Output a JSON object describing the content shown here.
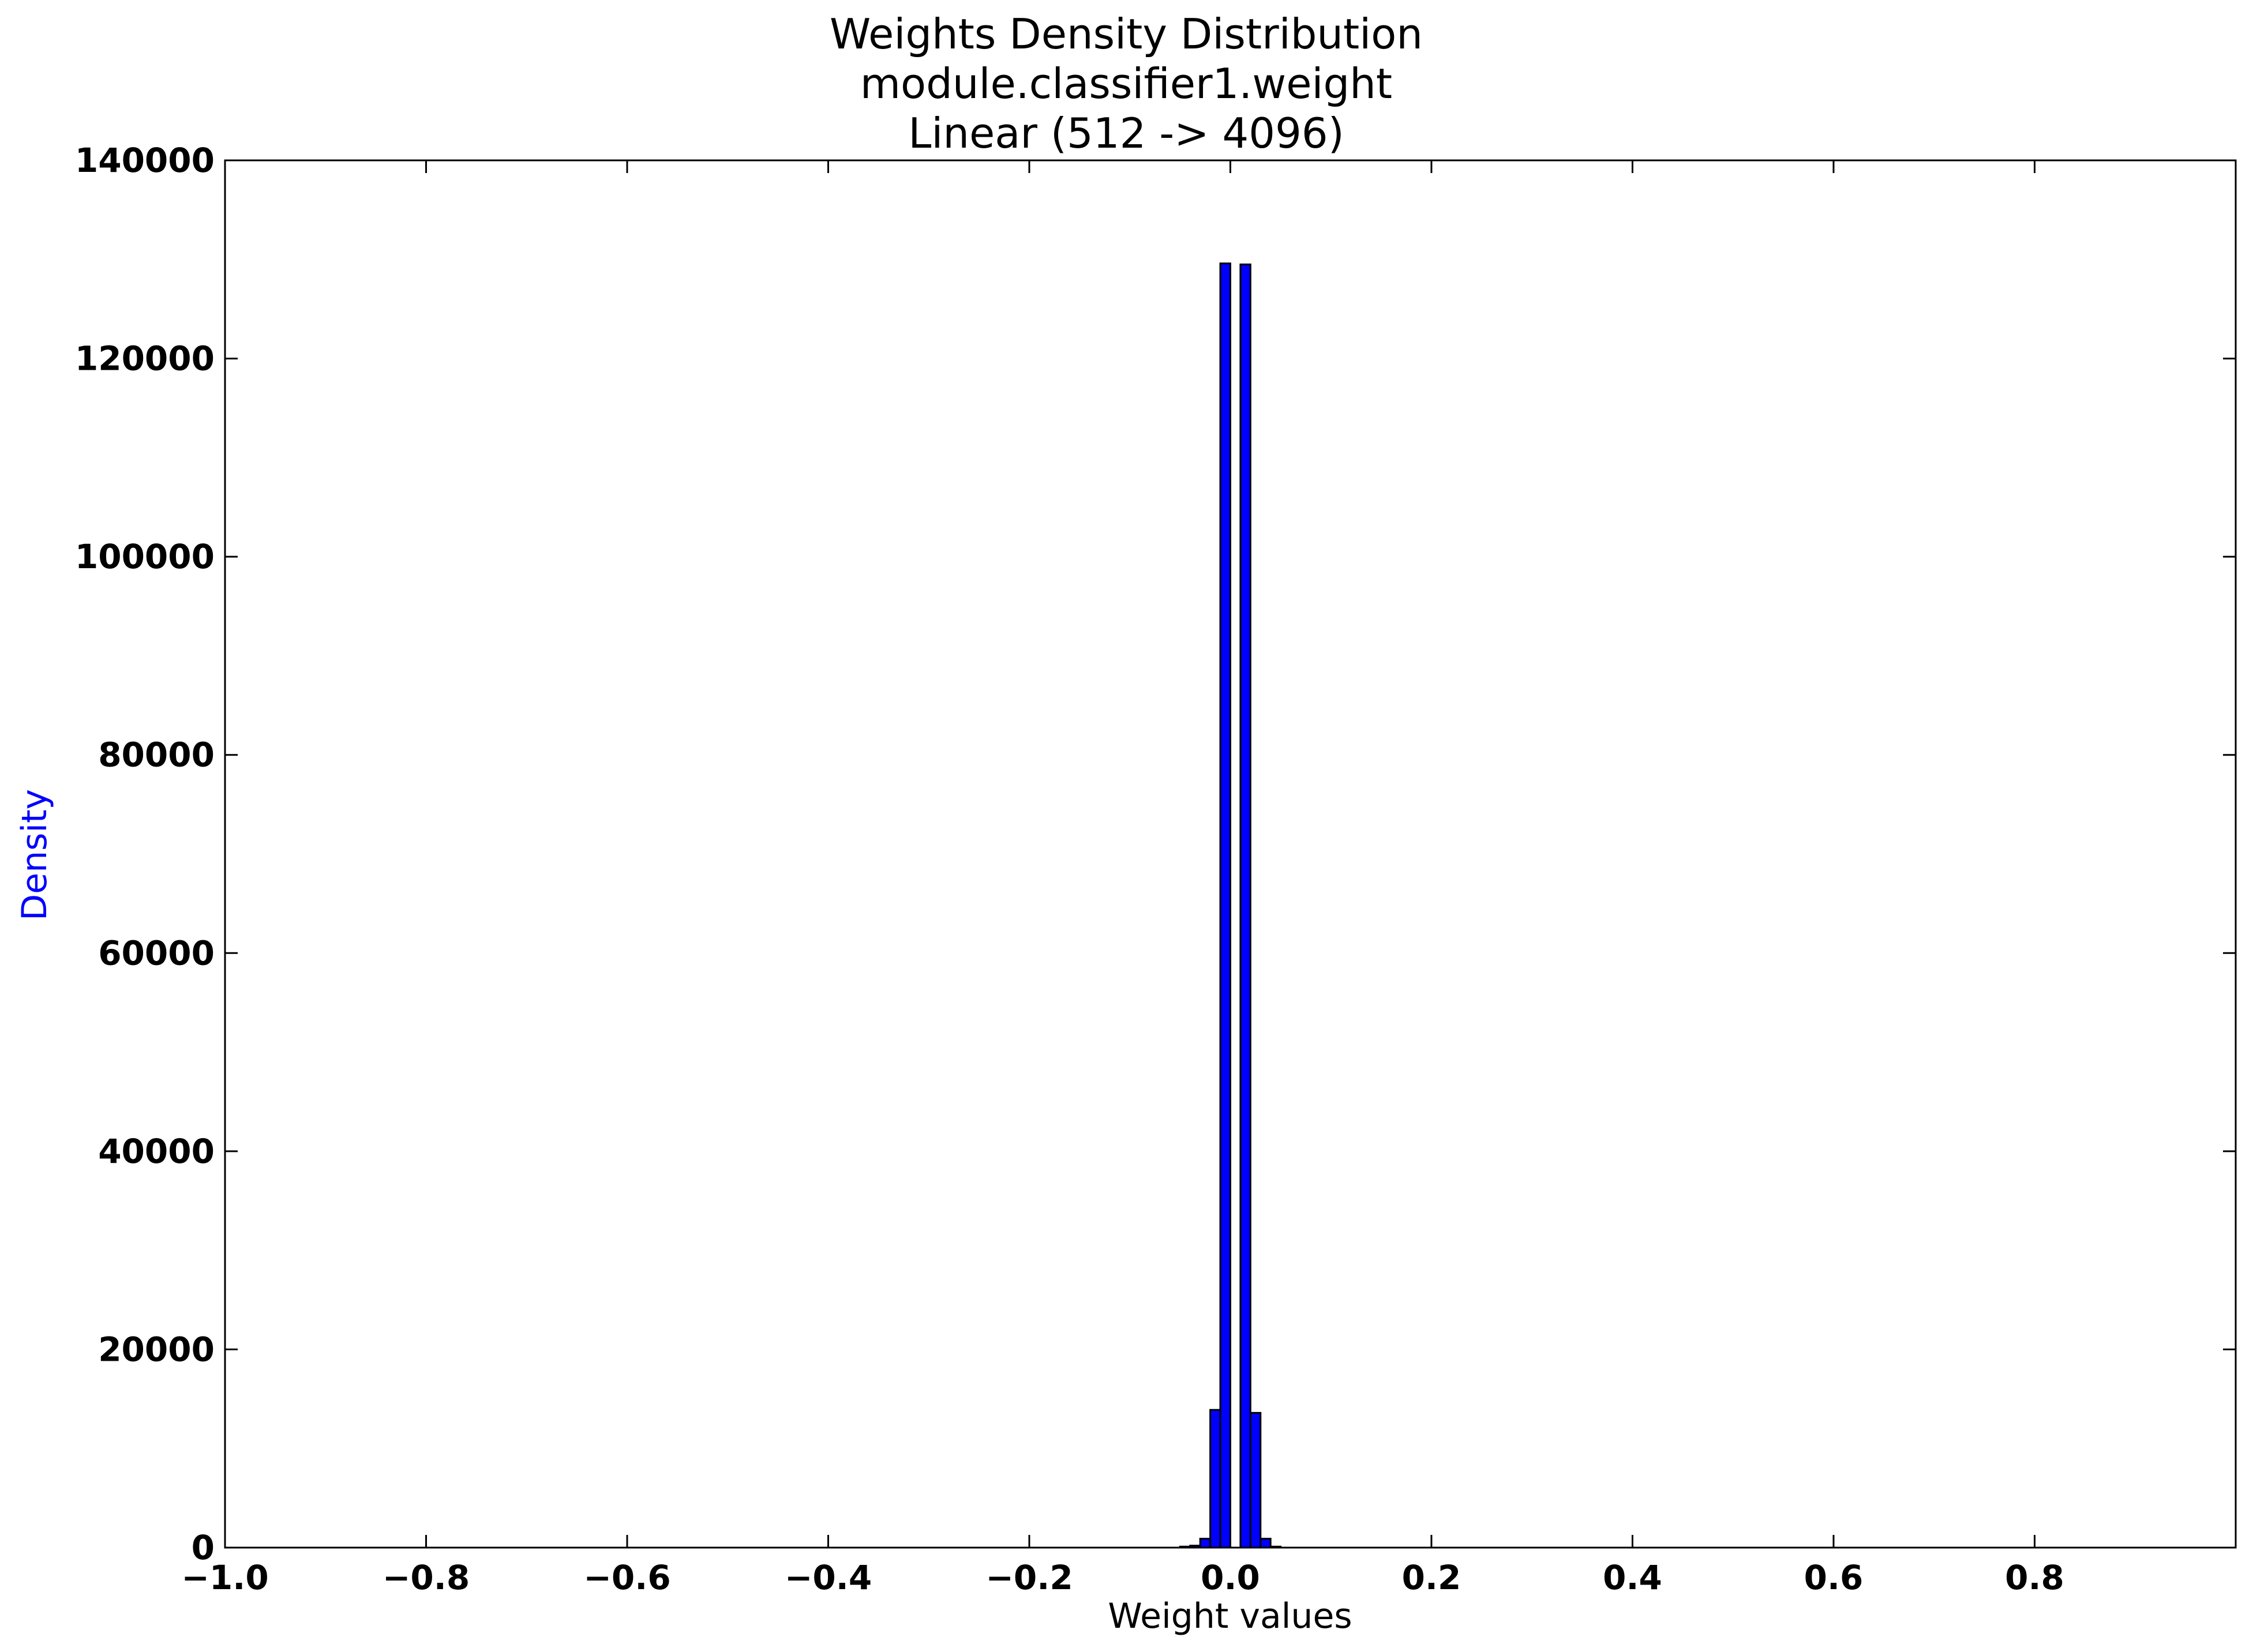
{
  "chart_data": {
    "type": "bar",
    "title_lines": [
      "Weights Density Distribution",
      "module.classifier1.weight",
      "Linear (512 -> 4096)"
    ],
    "xlabel": "Weight values",
    "ylabel": "Density",
    "ylabel_color": "#0000ff",
    "bar_color": "#0000ff",
    "bar_edge_color": "#000000",
    "xlim": [
      -1.0,
      1.0
    ],
    "ylim": [
      0,
      140000
    ],
    "x_ticks": [
      -1.0,
      -0.8,
      -0.6,
      -0.4,
      -0.2,
      0.0,
      0.2,
      0.4,
      0.6,
      0.8
    ],
    "x_tick_labels": [
      "−1.0",
      "−0.8",
      "−0.6",
      "−0.4",
      "−0.2",
      "0.0",
      "0.2",
      "0.4",
      "0.6",
      "0.8"
    ],
    "y_ticks": [
      0,
      20000,
      40000,
      60000,
      80000,
      100000,
      120000,
      140000
    ],
    "y_tick_labels": [
      "0",
      "20000",
      "40000",
      "60000",
      "80000",
      "100000",
      "120000",
      "140000"
    ],
    "bin_width": 0.01,
    "bars": [
      {
        "x0": -0.05,
        "value": 100
      },
      {
        "x0": -0.04,
        "value": 200
      },
      {
        "x0": -0.03,
        "value": 900
      },
      {
        "x0": -0.02,
        "value": 13900
      },
      {
        "x0": -0.01,
        "value": 129600
      },
      {
        "x0": 0.01,
        "value": 129500
      },
      {
        "x0": 0.02,
        "value": 13600
      },
      {
        "x0": 0.03,
        "value": 900
      },
      {
        "x0": 0.04,
        "value": 100
      }
    ],
    "grid": false,
    "legend": "none"
  }
}
